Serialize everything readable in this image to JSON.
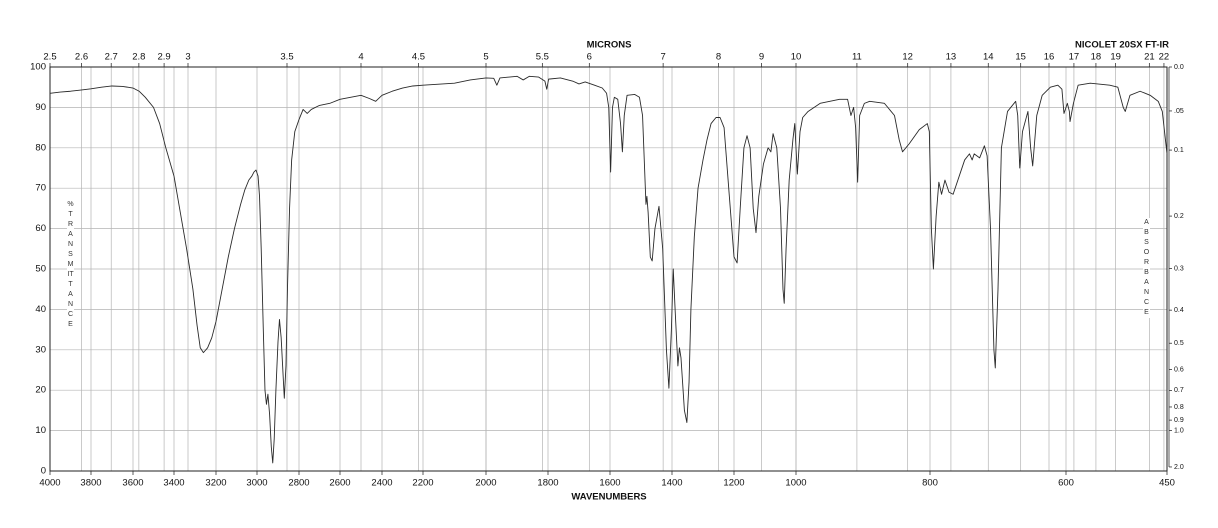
{
  "chart_data": {
    "type": "line",
    "annotation": "NICOLET 20SX FT-IR",
    "x_label": "WAVENUMBERS",
    "x2_label": "MICRONS",
    "y_label": "%TRANSMITTANCE",
    "y2_label": "ABSORBANCE",
    "xlim": [
      4000,
      450
    ],
    "xticks": [
      4000,
      3800,
      3600,
      3400,
      3200,
      3000,
      2800,
      2600,
      2400,
      2200,
      2000,
      1800,
      1600,
      1400,
      1200,
      1000,
      800,
      600,
      450
    ],
    "micron_ticks": [
      2.5,
      2.6,
      2.7,
      2.8,
      2.9,
      3,
      3.5,
      4,
      4.5,
      5,
      5.5,
      6,
      7,
      8,
      9,
      10,
      11,
      12,
      13,
      14,
      15,
      16,
      17,
      18,
      19,
      21,
      22
    ],
    "ylim": [
      0,
      100
    ],
    "yticks": [
      0,
      10,
      20,
      30,
      40,
      50,
      60,
      70,
      80,
      90,
      100
    ],
    "y2_scale": "absorbance",
    "y2lim": [
      0,
      2
    ],
    "y2ticks": [
      {
        "value": 0,
        "label": "0.0"
      },
      {
        "value": 0.05,
        "label": ".05"
      },
      0.1,
      0.2,
      0.3,
      0.4,
      0.5,
      0.6,
      0.7,
      0.8,
      0.9,
      {
        "value": 1,
        "label": "1.0"
      },
      {
        "value": 2,
        "label": "2.0"
      }
    ],
    "grid": true,
    "color": "#2a2a2a",
    "x": [
      4000,
      3950,
      3900,
      3850,
      3800,
      3750,
      3700,
      3650,
      3600,
      3570,
      3540,
      3500,
      3470,
      3440,
      3400,
      3370,
      3340,
      3310,
      3290,
      3275,
      3260,
      3240,
      3220,
      3200,
      3170,
      3140,
      3110,
      3080,
      3060,
      3040,
      3025,
      3015,
      3005,
      2995,
      2988,
      2980,
      2970,
      2962,
      2955,
      2948,
      2940,
      2932,
      2925,
      2918,
      2910,
      2900,
      2893,
      2885,
      2878,
      2870,
      2862,
      2855,
      2845,
      2835,
      2820,
      2800,
      2780,
      2760,
      2740,
      2700,
      2650,
      2600,
      2550,
      2500,
      2460,
      2430,
      2400,
      2350,
      2300,
      2250,
      2200,
      2100,
      2050,
      2000,
      1975,
      1965,
      1955,
      1900,
      1880,
      1860,
      1830,
      1810,
      1804,
      1798,
      1760,
      1720,
      1700,
      1680,
      1650,
      1625,
      1611,
      1604,
      1598,
      1592,
      1586,
      1575,
      1566,
      1560,
      1554,
      1545,
      1520,
      1505,
      1495,
      1487,
      1484,
      1481,
      1477,
      1470,
      1464,
      1455,
      1442,
      1430,
      1418,
      1410,
      1402,
      1396,
      1390,
      1381,
      1376,
      1371,
      1360,
      1352,
      1345,
      1339,
      1328,
      1316,
      1300,
      1287,
      1274,
      1258,
      1245,
      1232,
      1215,
      1200,
      1190,
      1180,
      1168,
      1158,
      1148,
      1138,
      1129,
      1120,
      1105,
      1090,
      1081,
      1074,
      1062,
      1050,
      1042,
      1038,
      1032,
      1022,
      1010,
      1004,
      998,
      994,
      990,
      982,
      964,
      935,
      923,
      918,
      914,
      911,
      908,
      905,
      898,
      890,
      868,
      853,
      846,
      841,
      831,
      816,
      804,
      801,
      798,
      795,
      791,
      787,
      783,
      778,
      772,
      766,
      757,
      749,
      742,
      738,
      735,
      727,
      720,
      716,
      711,
      706,
      704,
      700,
      695,
      686,
      674,
      671,
      668,
      664,
      656,
      652,
      649,
      643,
      635,
      623,
      612,
      606,
      603,
      598,
      595,
      594,
      589,
      582,
      564,
      535,
      523,
      515,
      512,
      505,
      490,
      475,
      463,
      457,
      451,
      450
    ],
    "values": [
      93.5,
      93.8,
      94,
      94.3,
      94.6,
      95,
      95.3,
      95.2,
      94.8,
      94,
      92.5,
      90,
      86,
      80,
      73,
      64,
      55,
      45,
      36,
      30.5,
      29.3,
      30.5,
      33,
      37,
      45,
      53,
      60,
      66,
      69.5,
      72,
      73,
      74,
      74.5,
      73,
      68,
      55,
      35,
      20,
      16.5,
      19,
      14,
      6,
      2,
      8,
      20,
      32,
      37.5,
      33,
      26,
      18,
      26,
      45,
      65,
      77,
      84,
      87,
      89.5,
      88.5,
      89.5,
      90.5,
      91,
      92,
      92.5,
      93,
      92.2,
      91.5,
      93,
      94,
      94.8,
      95.3,
      95.5,
      96,
      96.8,
      97.3,
      97.2,
      95.5,
      97.3,
      97.7,
      96.8,
      97.7,
      97.5,
      96.5,
      94.5,
      97,
      97.3,
      96.5,
      95.8,
      96.3,
      95.5,
      94.8,
      93.5,
      90,
      74,
      90,
      92.5,
      92,
      86,
      79,
      88,
      93,
      93.2,
      92.5,
      88,
      72,
      66,
      68,
      64,
      53,
      52,
      60,
      65.5,
      55,
      30,
      20.5,
      35,
      50,
      40,
      26,
      30.5,
      28,
      15,
      12,
      22,
      40,
      58,
      70,
      77,
      82,
      86,
      87.5,
      87.5,
      85,
      68,
      53,
      51.5,
      65,
      80,
      83,
      80,
      65,
      59,
      68,
      76,
      80,
      79,
      83.5,
      80,
      65,
      45,
      41.5,
      55,
      72,
      82,
      86,
      73.5,
      84,
      87.5,
      89,
      91,
      92,
      92,
      88,
      90,
      85,
      71.5,
      88,
      91,
      91.5,
      91,
      88,
      82,
      79,
      81,
      84.5,
      86,
      84,
      60,
      50,
      63,
      71.5,
      68.5,
      72,
      69,
      68.5,
      73,
      77,
      78.5,
      77,
      78.5,
      77.5,
      80.5,
      78,
      60,
      30,
      25.5,
      45,
      80,
      89,
      91.5,
      88,
      75,
      84,
      89,
      80,
      75.5,
      88,
      93,
      95,
      95.5,
      94.5,
      88.5,
      91,
      89,
      86.5,
      91,
      95.5,
      96,
      95.5,
      95,
      90,
      89,
      93,
      94,
      93,
      91.5,
      89,
      80,
      78.5
    ]
  }
}
